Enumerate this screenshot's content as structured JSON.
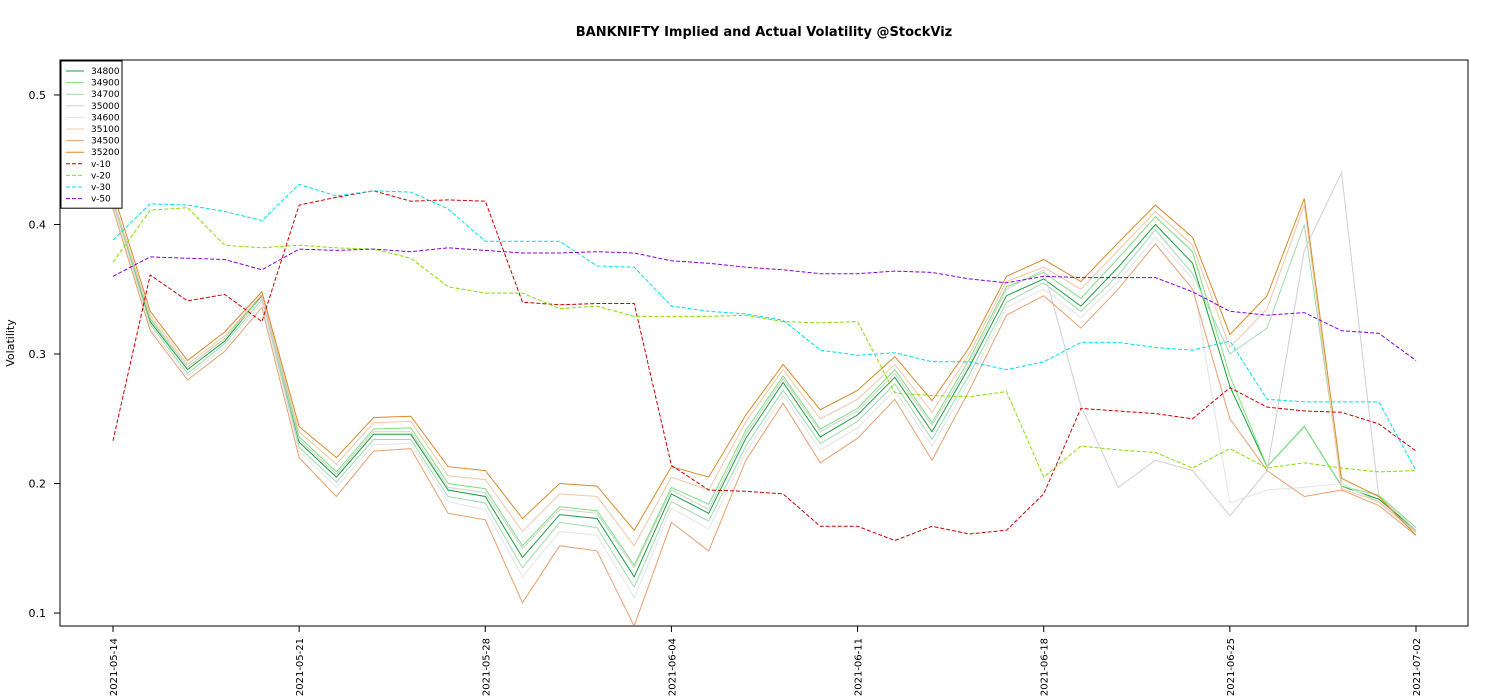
{
  "chart_data": {
    "type": "line",
    "title": "BANKNIFTY Implied and Actual Volatility @StockViz",
    "xlabel": "",
    "ylabel": "Volatility",
    "ylim": [
      0.09,
      0.527
    ],
    "yticks": [
      0.1,
      0.2,
      0.3,
      0.4,
      0.5
    ],
    "ytick_labels": [
      "0.1",
      "0.2",
      "0.3",
      "0.4",
      "0.5"
    ],
    "x": [
      "2021-05-14",
      "2021-05-17",
      "2021-05-18",
      "2021-05-19",
      "2021-05-20",
      "2021-05-21",
      "2021-05-24",
      "2021-05-25",
      "2021-05-26",
      "2021-05-27",
      "2021-05-28",
      "2021-05-31",
      "2021-06-01",
      "2021-06-02",
      "2021-06-03",
      "2021-06-04",
      "2021-06-07",
      "2021-06-08",
      "2021-06-09",
      "2021-06-10",
      "2021-06-11",
      "2021-06-14",
      "2021-06-15",
      "2021-06-16",
      "2021-06-17",
      "2021-06-18",
      "2021-06-21",
      "2021-06-22",
      "2021-06-23",
      "2021-06-24",
      "2021-06-25",
      "2021-06-28",
      "2021-06-29",
      "2021-06-30",
      "2021-07-01",
      "2021-07-02"
    ],
    "xtick_labels": [
      {
        "label": "2021-05-14",
        "index": 0
      },
      {
        "label": "2021-05-21",
        "index": 5
      },
      {
        "label": "2021-05-28",
        "index": 10
      },
      {
        "label": "2021-06-04",
        "index": 15
      },
      {
        "label": "2021-06-11",
        "index": 20
      },
      {
        "label": "2021-06-18",
        "index": 25
      },
      {
        "label": "2021-06-25",
        "index": 30
      },
      {
        "label": "2021-07-02",
        "index": 35
      }
    ],
    "legend_position": "top-left",
    "grid": false,
    "series": [
      {
        "name": "34800",
        "color": "#1a9e3a",
        "dash": "solid",
        "values": [
          0.42,
          0.325,
          0.288,
          0.31,
          0.345,
          0.232,
          0.205,
          0.238,
          0.238,
          0.195,
          0.19,
          0.143,
          0.176,
          0.173,
          0.128,
          0.192,
          0.177,
          0.235,
          0.278,
          0.236,
          0.253,
          0.282,
          0.24,
          0.29,
          0.345,
          0.358,
          0.337,
          0.367,
          0.4,
          0.37,
          0.275,
          0.213,
          0.244,
          0.198,
          0.188,
          0.164
        ]
      },
      {
        "name": "34900",
        "color": "#7ee07e",
        "dash": "solid",
        "values": [
          0.42,
          0.327,
          0.29,
          0.312,
          0.346,
          0.236,
          0.209,
          0.242,
          0.243,
          0.2,
          0.196,
          0.152,
          0.182,
          0.179,
          0.137,
          0.197,
          0.184,
          0.241,
          0.283,
          0.242,
          0.258,
          0.288,
          0.247,
          0.296,
          0.352,
          0.363,
          0.343,
          0.374,
          0.406,
          0.379,
          0.283,
          0.213,
          0.244,
          0.198,
          0.191,
          0.166
        ]
      },
      {
        "name": "34700",
        "color": "#9fdcb0",
        "dash": "solid",
        "values": [
          0.418,
          0.323,
          0.285,
          0.308,
          0.342,
          0.228,
          0.201,
          0.234,
          0.234,
          0.19,
          0.185,
          0.135,
          0.17,
          0.166,
          0.12,
          0.186,
          0.171,
          0.229,
          0.272,
          0.231,
          0.248,
          0.277,
          0.234,
          0.284,
          0.34,
          0.355,
          0.333,
          0.361,
          0.396,
          0.362,
          0.3,
          0.32,
          0.4,
          0.2,
          0.186,
          0.163
        ]
      },
      {
        "name": "35000",
        "color": "#d0d0d0",
        "dash": "solid",
        "values": [
          0.42,
          0.328,
          0.29,
          0.312,
          0.344,
          0.234,
          0.207,
          0.24,
          0.24,
          0.197,
          0.193,
          0.15,
          0.18,
          0.177,
          0.135,
          0.195,
          0.18,
          0.238,
          0.281,
          0.24,
          0.256,
          0.285,
          0.245,
          0.292,
          0.35,
          0.365,
          0.26,
          0.197,
          0.218,
          0.21,
          0.175,
          0.21,
          0.38,
          0.44,
          0.19,
          0.164
        ]
      },
      {
        "name": "34600",
        "color": "#e4e4e4",
        "dash": "solid",
        "values": [
          0.415,
          0.32,
          0.283,
          0.305,
          0.34,
          0.225,
          0.197,
          0.23,
          0.231,
          0.186,
          0.18,
          0.128,
          0.163,
          0.16,
          0.112,
          0.181,
          0.165,
          0.224,
          0.268,
          0.226,
          0.243,
          0.272,
          0.229,
          0.279,
          0.336,
          0.35,
          0.328,
          0.356,
          0.39,
          0.358,
          0.185,
          0.195,
          0.197,
          0.2,
          0.185,
          0.162
        ]
      },
      {
        "name": "35100",
        "color": "#f0c8a8",
        "dash": "solid",
        "values": [
          0.42,
          0.33,
          0.292,
          0.314,
          0.346,
          0.24,
          0.215,
          0.247,
          0.248,
          0.206,
          0.203,
          0.163,
          0.192,
          0.19,
          0.152,
          0.205,
          0.195,
          0.248,
          0.288,
          0.25,
          0.265,
          0.292,
          0.255,
          0.3,
          0.356,
          0.367,
          0.35,
          0.38,
          0.41,
          0.384,
          0.305,
          0.335,
          0.415,
          0.196,
          0.186,
          0.162
        ]
      },
      {
        "name": "34500",
        "color": "#e8a070",
        "dash": "solid",
        "values": [
          0.412,
          0.318,
          0.28,
          0.302,
          0.336,
          0.22,
          0.19,
          0.225,
          0.227,
          0.177,
          0.172,
          0.108,
          0.152,
          0.148,
          0.09,
          0.17,
          0.148,
          0.218,
          0.262,
          0.216,
          0.235,
          0.265,
          0.218,
          0.272,
          0.33,
          0.345,
          0.32,
          0.35,
          0.385,
          0.35,
          0.25,
          0.21,
          0.19,
          0.195,
          0.183,
          0.16
        ]
      },
      {
        "name": "35200",
        "color": "#d98a2a",
        "dash": "solid",
        "values": [
          0.425,
          0.333,
          0.295,
          0.317,
          0.348,
          0.244,
          0.22,
          0.251,
          0.252,
          0.213,
          0.21,
          0.173,
          0.2,
          0.198,
          0.164,
          0.213,
          0.205,
          0.253,
          0.292,
          0.257,
          0.272,
          0.298,
          0.264,
          0.305,
          0.36,
          0.373,
          0.356,
          0.386,
          0.415,
          0.39,
          0.315,
          0.345,
          0.42,
          0.204,
          0.19,
          0.16
        ]
      },
      {
        "name": "v-10",
        "color": "#cc0000",
        "dash": "dashed",
        "values": [
          0.233,
          0.361,
          0.341,
          0.346,
          0.325,
          0.415,
          0.421,
          0.426,
          0.418,
          0.419,
          0.418,
          0.34,
          0.338,
          0.339,
          0.339,
          0.214,
          0.195,
          0.194,
          0.192,
          0.167,
          0.167,
          0.156,
          0.167,
          0.161,
          0.164,
          0.192,
          0.258,
          0.256,
          0.254,
          0.25,
          0.274,
          0.259,
          0.256,
          0.255,
          0.246,
          0.225
        ]
      },
      {
        "name": "v-20",
        "color": "#88dd00",
        "dash": "dashed",
        "values": [
          0.371,
          0.411,
          0.413,
          0.384,
          0.382,
          0.384,
          0.382,
          0.381,
          0.374,
          0.352,
          0.347,
          0.347,
          0.335,
          0.337,
          0.329,
          0.329,
          0.329,
          0.33,
          0.325,
          0.324,
          0.325,
          0.27,
          0.268,
          0.267,
          0.271,
          0.205,
          0.229,
          0.226,
          0.224,
          0.212,
          0.227,
          0.212,
          0.216,
          0.212,
          0.209,
          0.21
        ]
      },
      {
        "name": "v-30",
        "color": "#00e0e8",
        "dash": "dashed",
        "values": [
          0.388,
          0.416,
          0.415,
          0.41,
          0.403,
          0.431,
          0.422,
          0.426,
          0.425,
          0.412,
          0.387,
          0.387,
          0.387,
          0.368,
          0.367,
          0.337,
          0.333,
          0.331,
          0.326,
          0.303,
          0.299,
          0.301,
          0.294,
          0.294,
          0.288,
          0.294,
          0.309,
          0.309,
          0.305,
          0.303,
          0.31,
          0.265,
          0.263,
          0.263,
          0.263,
          0.21
        ]
      },
      {
        "name": "v-50",
        "color": "#8800dd",
        "dash": "dashed",
        "values": [
          0.36,
          0.375,
          0.374,
          0.373,
          0.365,
          0.381,
          0.38,
          0.381,
          0.379,
          0.382,
          0.38,
          0.378,
          0.378,
          0.379,
          0.378,
          0.372,
          0.37,
          0.367,
          0.365,
          0.362,
          0.362,
          0.364,
          0.363,
          0.358,
          0.355,
          0.36,
          0.359,
          0.359,
          0.359,
          0.348,
          0.333,
          0.33,
          0.332,
          0.318,
          0.316,
          0.295
        ]
      }
    ]
  }
}
